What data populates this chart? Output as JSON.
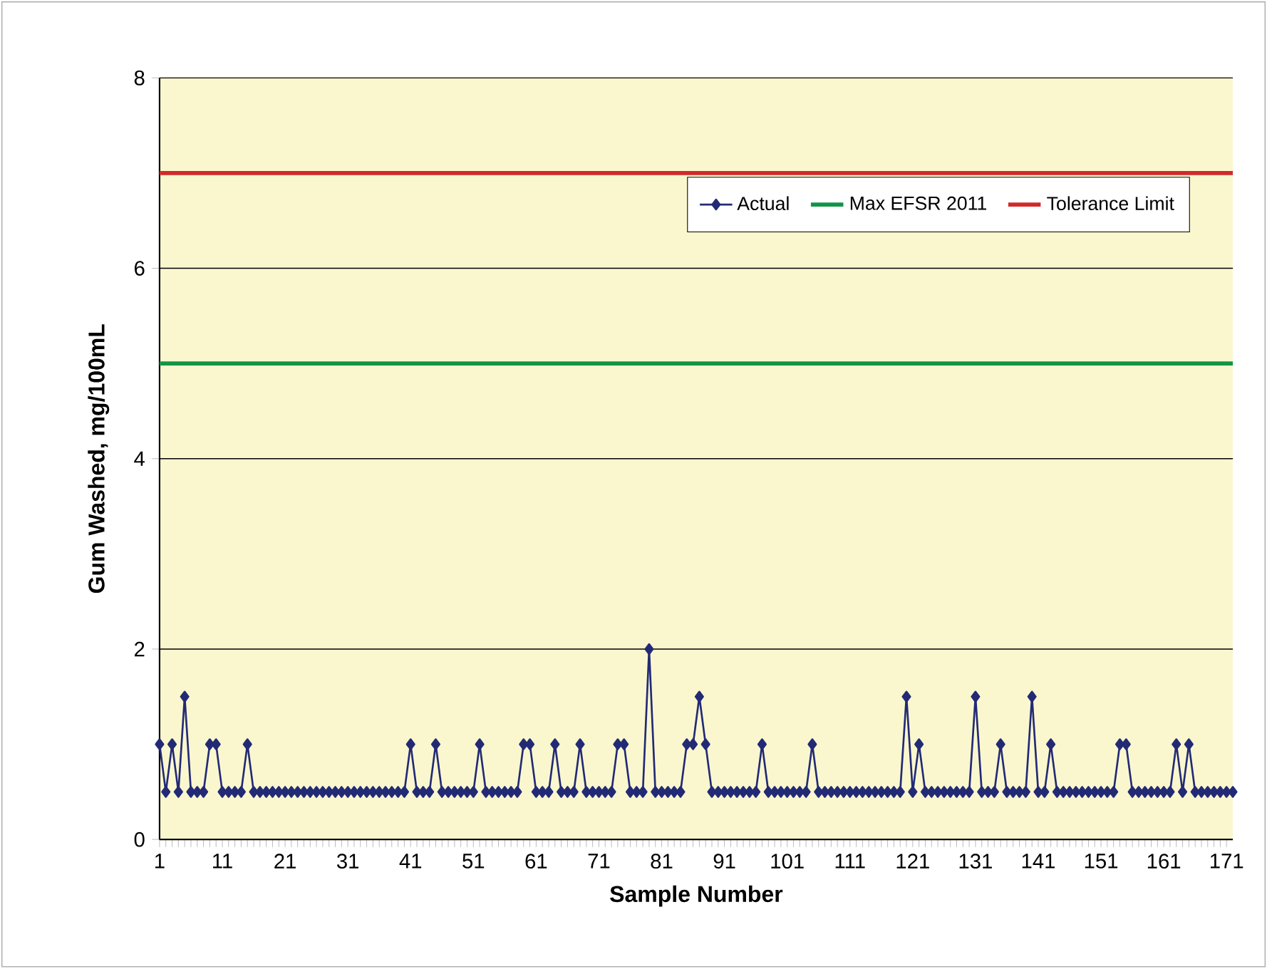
{
  "chart_data": {
    "type": "line",
    "xlabel": "Sample Number",
    "ylabel": "Gum Washed, mg/100mL",
    "x": [
      1,
      2,
      3,
      4,
      5,
      6,
      7,
      8,
      9,
      10,
      11,
      12,
      13,
      14,
      15,
      16,
      17,
      18,
      19,
      20,
      21,
      22,
      23,
      24,
      25,
      26,
      27,
      28,
      29,
      30,
      31,
      32,
      33,
      34,
      35,
      36,
      37,
      38,
      39,
      40,
      41,
      42,
      43,
      44,
      45,
      46,
      47,
      48,
      49,
      50,
      51,
      52,
      53,
      54,
      55,
      56,
      57,
      58,
      59,
      60,
      61,
      62,
      63,
      64,
      65,
      66,
      67,
      68,
      69,
      70,
      71,
      72,
      73,
      74,
      75,
      76,
      77,
      78,
      79,
      80,
      81,
      82,
      83,
      84,
      85,
      86,
      87,
      88,
      89,
      90,
      91,
      92,
      93,
      94,
      95,
      96,
      97,
      98,
      99,
      100,
      101,
      102,
      103,
      104,
      105,
      106,
      107,
      108,
      109,
      110,
      111,
      112,
      113,
      114,
      115,
      116,
      117,
      118,
      119,
      120,
      121,
      122,
      123,
      124,
      125,
      126,
      127,
      128,
      129,
      130,
      131,
      132,
      133,
      134,
      135,
      136,
      137,
      138,
      139,
      140,
      141,
      142,
      143,
      144,
      145,
      146,
      147,
      148,
      149,
      150,
      151,
      152,
      153,
      154,
      155,
      156,
      157,
      158,
      159,
      160,
      161,
      162,
      163,
      164,
      165,
      166,
      167,
      168,
      169,
      170,
      171,
      172
    ],
    "series": [
      {
        "name": "Actual",
        "color": "#232a75",
        "values": [
          1,
          0.5,
          1,
          0.5,
          1.5,
          0.5,
          0.5,
          0.5,
          1,
          1,
          0.5,
          0.5,
          0.5,
          0.5,
          1,
          0.5,
          0.5,
          0.5,
          0.5,
          0.5,
          0.5,
          0.5,
          0.5,
          0.5,
          0.5,
          0.5,
          0.5,
          0.5,
          0.5,
          0.5,
          0.5,
          0.5,
          0.5,
          0.5,
          0.5,
          0.5,
          0.5,
          0.5,
          0.5,
          0.5,
          1,
          0.5,
          0.5,
          0.5,
          1,
          0.5,
          0.5,
          0.5,
          0.5,
          0.5,
          0.5,
          1,
          0.5,
          0.5,
          0.5,
          0.5,
          0.5,
          0.5,
          1,
          1,
          0.5,
          0.5,
          0.5,
          1,
          0.5,
          0.5,
          0.5,
          1,
          0.5,
          0.5,
          0.5,
          0.5,
          0.5,
          1,
          1,
          0.5,
          0.5,
          0.5,
          2,
          0.5,
          0.5,
          0.5,
          0.5,
          0.5,
          1,
          1,
          1.5,
          1,
          0.5,
          0.5,
          0.5,
          0.5,
          0.5,
          0.5,
          0.5,
          0.5,
          1,
          0.5,
          0.5,
          0.5,
          0.5,
          0.5,
          0.5,
          0.5,
          1,
          0.5,
          0.5,
          0.5,
          0.5,
          0.5,
          0.5,
          0.5,
          0.5,
          0.5,
          0.5,
          0.5,
          0.5,
          0.5,
          0.5,
          1.5,
          0.5,
          1,
          0.5,
          0.5,
          0.5,
          0.5,
          0.5,
          0.5,
          0.5,
          0.5,
          1.5,
          0.5,
          0.5,
          0.5,
          1,
          0.5,
          0.5,
          0.5,
          0.5,
          1.5,
          0.5,
          0.5,
          1,
          0.5,
          0.5,
          0.5,
          0.5,
          0.5,
          0.5,
          0.5,
          0.5,
          0.5,
          0.5,
          1,
          1,
          0.5,
          0.5,
          0.5,
          0.5,
          0.5,
          0.5,
          0.5,
          1,
          0.5,
          1,
          0.5,
          0.5,
          0.5,
          0.5,
          0.5,
          0.5,
          0.5
        ]
      }
    ],
    "ref_lines": [
      {
        "axis": "y",
        "value": 5,
        "label": "Max EFSR 2011",
        "color": "#139447"
      },
      {
        "axis": "y",
        "value": 7,
        "label": "Tolerance Limit",
        "color": "#d12a2a"
      }
    ],
    "xlim": [
      1,
      172
    ],
    "ylim": [
      0,
      8
    ],
    "xticks": [
      1,
      11,
      21,
      31,
      41,
      51,
      61,
      71,
      81,
      91,
      101,
      111,
      121,
      131,
      141,
      151,
      161,
      171
    ],
    "yticks": [
      0,
      2,
      4,
      6,
      8
    ],
    "grid": "y",
    "legend": "top right",
    "marker": "diamond"
  }
}
